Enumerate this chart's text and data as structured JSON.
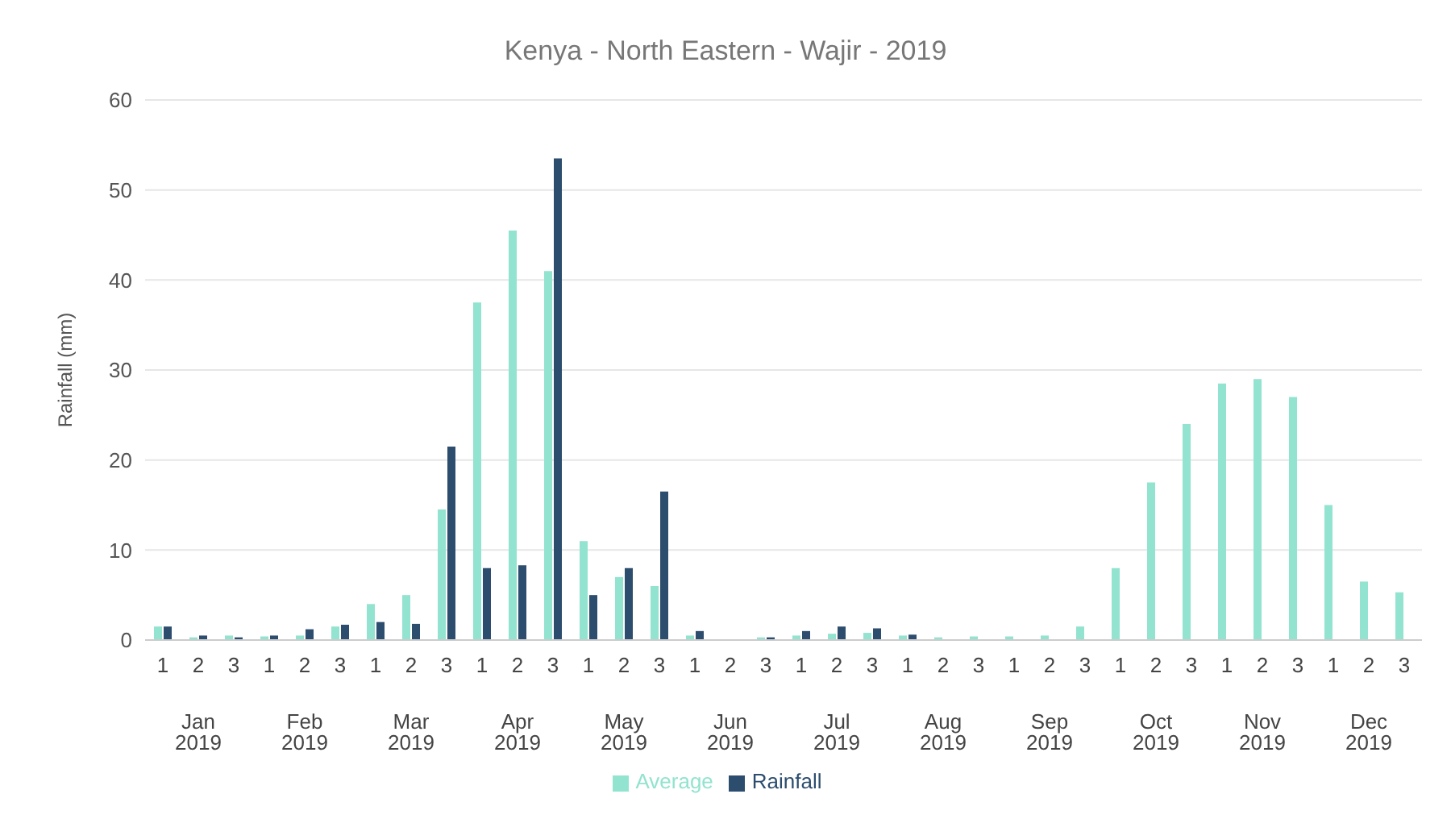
{
  "chart_data": {
    "type": "bar",
    "title": "Kenya - North Eastern - Wajir - 2019",
    "ylabel": "Rainfall (mm)",
    "categories": [
      "1",
      "2",
      "3",
      "1",
      "2",
      "3",
      "1",
      "2",
      "3",
      "1",
      "2",
      "3",
      "1",
      "2",
      "3",
      "1",
      "2",
      "3",
      "1",
      "2",
      "3",
      "1",
      "2",
      "3",
      "1",
      "2",
      "3",
      "1",
      "2",
      "3",
      "1",
      "2",
      "3",
      "1",
      "2",
      "3"
    ],
    "annotations": [
      "Jan 2019",
      "Feb 2019",
      "Mar 2019",
      "Apr 2019",
      "May 2019",
      "Jun 2019",
      "Jul 2019",
      "Aug 2019",
      "Sep 2019",
      "Oct 2019",
      "Nov 2019",
      "Dec 2019"
    ],
    "series": [
      {
        "name": "Average",
        "color": "#92e3cf",
        "values": [
          1.5,
          0.3,
          0.5,
          0.4,
          0.5,
          1.5,
          4,
          5,
          14.5,
          37.5,
          45.5,
          41,
          11,
          7,
          6,
          0.5,
          0,
          0.3,
          0.5,
          0.7,
          0.8,
          0.5,
          0.3,
          0.4,
          0.4,
          0.5,
          1.5,
          8,
          17.5,
          24,
          28.5,
          29,
          27,
          15,
          6.5,
          5.3
        ]
      },
      {
        "name": "Rainfall",
        "color": "#2c4d6e",
        "values": [
          1.5,
          0.5,
          0.3,
          0.5,
          1.2,
          1.7,
          2,
          1.8,
          21.5,
          8,
          8.3,
          53.5,
          5,
          8,
          16.5,
          1,
          0,
          0.3,
          1,
          1.5,
          1.3,
          0.6,
          0,
          0,
          0,
          0,
          0,
          0,
          0,
          0,
          0,
          0,
          0,
          0,
          0,
          0
        ]
      }
    ],
    "ylim": [
      0,
      60
    ],
    "yticks": [
      0,
      10,
      20,
      30,
      40,
      50,
      60
    ],
    "grid": "y",
    "legend": "bottom"
  }
}
